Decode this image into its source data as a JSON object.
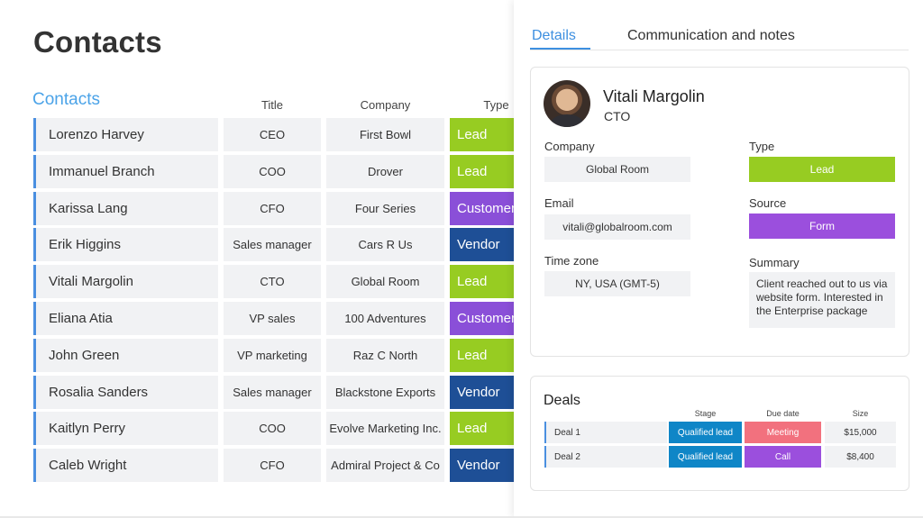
{
  "page": {
    "title": "Contacts"
  },
  "board": {
    "group_title": "Contacts",
    "columns": {
      "title": "Title",
      "company": "Company",
      "type": "Type"
    },
    "rows": [
      {
        "name": "Lorenzo Harvey",
        "title": "CEO",
        "company": "First Bowl",
        "type": "Lead",
        "type_color": "#97cc22"
      },
      {
        "name": "Immanuel Branch",
        "title": "COO",
        "company": "Drover",
        "type": "Lead",
        "type_color": "#97cc22"
      },
      {
        "name": "Karissa Lang",
        "title": "CFO",
        "company": "Four Series",
        "type": "Customer",
        "type_color": "#8a4fd8"
      },
      {
        "name": "Erik Higgins",
        "title": "Sales manager",
        "company": "Cars R Us",
        "type": "Vendor",
        "type_color": "#1e4f96"
      },
      {
        "name": "Vitali Margolin",
        "title": "CTO",
        "company": "Global Room",
        "type": "Lead",
        "type_color": "#97cc22"
      },
      {
        "name": "Eliana Atia",
        "title": "VP sales",
        "company": "100 Adventures",
        "type": "Customer",
        "type_color": "#8a4fd8"
      },
      {
        "name": "John Green",
        "title": "VP marketing",
        "company": "Raz C North",
        "type": "Lead",
        "type_color": "#97cc22"
      },
      {
        "name": "Rosalia Sanders",
        "title": "Sales manager",
        "company": "Blackstone Exports",
        "type": "Vendor",
        "type_color": "#1e4f96"
      },
      {
        "name": "Kaitlyn Perry",
        "title": "COO",
        "company": "Evolve Marketing Inc.",
        "type": "Lead",
        "type_color": "#97cc22"
      },
      {
        "name": "Caleb Wright",
        "title": "CFO",
        "company": "Admiral Project & Co",
        "type": "Vendor",
        "type_color": "#1e4f96"
      }
    ]
  },
  "panel": {
    "tabs": {
      "details": "Details",
      "communication": "Communication and notes"
    },
    "person": {
      "name": "Vitali Margolin",
      "role": "CTO"
    },
    "fields": {
      "company_label": "Company",
      "company": "Global Room",
      "type_label": "Type",
      "type": "Lead",
      "type_color": "#97cc22",
      "email_label": "Email",
      "email": "vitali@globalroom.com",
      "source_label": "Source",
      "source": "Form",
      "source_color": "#9b4fdd",
      "timezone_label": "Time zone",
      "timezone": "NY, USA (GMT-5)",
      "summary_label": "Summary",
      "summary": "Client reached out to us via website form. Interested in the Enterprise package"
    },
    "deals": {
      "title": "Deals",
      "headers": {
        "stage": "Stage",
        "due": "Due date",
        "size": "Size"
      },
      "rows": [
        {
          "name": "Deal 1",
          "stage": "Qualified lead",
          "stage_color": "#0f86c7",
          "due": "Meeting",
          "due_color": "#f2717e",
          "size": "$15,000"
        },
        {
          "name": "Deal 2",
          "stage": "Qualified lead",
          "stage_color": "#0f86c7",
          "due": "Call",
          "due_color": "#9b4fdd",
          "size": "$8,400"
        }
      ]
    }
  }
}
